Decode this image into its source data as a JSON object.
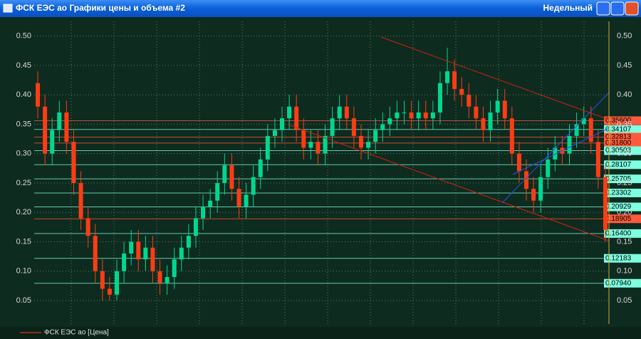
{
  "chart_data": {
    "type": "candlestick",
    "title": "ФСК ЕЭС ао Графики цены и объема #2",
    "period": "Недельный",
    "series": [
      {
        "name": "ФСК ЕЭС ао [Цена]",
        "color": "#ff3c14",
        "up_color": "#00d890",
        "open": [
          0.42,
          0.38,
          0.3,
          0.34,
          0.37,
          0.32,
          0.25,
          0.19,
          0.16,
          0.1,
          0.07,
          0.06,
          0.1,
          0.13,
          0.15,
          0.12,
          0.14,
          0.1,
          0.08,
          0.09,
          0.12,
          0.14,
          0.16,
          0.19,
          0.21,
          0.22,
          0.25,
          0.28,
          0.24,
          0.21,
          0.23,
          0.26,
          0.29,
          0.33,
          0.34,
          0.36,
          0.38,
          0.34,
          0.31,
          0.32,
          0.3,
          0.33,
          0.36,
          0.38,
          0.36,
          0.33,
          0.31,
          0.32,
          0.34,
          0.35,
          0.36,
          0.37,
          0.37,
          0.36,
          0.37,
          0.36,
          0.37,
          0.42,
          0.44,
          0.41,
          0.4,
          0.38,
          0.36,
          0.34,
          0.37,
          0.39,
          0.36,
          0.3,
          0.27,
          0.24,
          0.22,
          0.26,
          0.29,
          0.31,
          0.3,
          0.33,
          0.35,
          0.36,
          0.32,
          0.26
        ],
        "high": [
          0.44,
          0.4,
          0.36,
          0.39,
          0.39,
          0.34,
          0.27,
          0.21,
          0.18,
          0.12,
          0.09,
          0.12,
          0.15,
          0.17,
          0.17,
          0.16,
          0.16,
          0.12,
          0.11,
          0.14,
          0.16,
          0.18,
          0.21,
          0.23,
          0.24,
          0.27,
          0.3,
          0.3,
          0.26,
          0.25,
          0.28,
          0.31,
          0.35,
          0.36,
          0.38,
          0.4,
          0.4,
          0.36,
          0.34,
          0.34,
          0.35,
          0.38,
          0.4,
          0.4,
          0.38,
          0.35,
          0.34,
          0.36,
          0.37,
          0.38,
          0.39,
          0.39,
          0.39,
          0.39,
          0.39,
          0.39,
          0.44,
          0.48,
          0.46,
          0.43,
          0.42,
          0.4,
          0.38,
          0.39,
          0.41,
          0.41,
          0.38,
          0.32,
          0.29,
          0.26,
          0.28,
          0.31,
          0.33,
          0.33,
          0.35,
          0.37,
          0.38,
          0.38,
          0.34,
          0.28
        ],
        "low": [
          0.36,
          0.28,
          0.28,
          0.32,
          0.3,
          0.23,
          0.17,
          0.14,
          0.08,
          0.05,
          0.05,
          0.05,
          0.08,
          0.11,
          0.1,
          0.1,
          0.08,
          0.06,
          0.06,
          0.07,
          0.1,
          0.12,
          0.14,
          0.17,
          0.19,
          0.2,
          0.23,
          0.22,
          0.19,
          0.19,
          0.21,
          0.24,
          0.27,
          0.31,
          0.32,
          0.34,
          0.32,
          0.29,
          0.29,
          0.28,
          0.28,
          0.31,
          0.34,
          0.34,
          0.31,
          0.29,
          0.29,
          0.3,
          0.32,
          0.33,
          0.34,
          0.35,
          0.34,
          0.34,
          0.34,
          0.34,
          0.35,
          0.4,
          0.39,
          0.38,
          0.36,
          0.34,
          0.32,
          0.32,
          0.35,
          0.34,
          0.28,
          0.25,
          0.22,
          0.2,
          0.2,
          0.24,
          0.27,
          0.28,
          0.28,
          0.31,
          0.33,
          0.3,
          0.24,
          0.15
        ],
        "close": [
          0.38,
          0.3,
          0.34,
          0.37,
          0.32,
          0.25,
          0.19,
          0.16,
          0.1,
          0.07,
          0.06,
          0.1,
          0.13,
          0.15,
          0.12,
          0.14,
          0.1,
          0.08,
          0.09,
          0.12,
          0.14,
          0.16,
          0.19,
          0.21,
          0.22,
          0.25,
          0.28,
          0.24,
          0.21,
          0.23,
          0.26,
          0.29,
          0.33,
          0.34,
          0.36,
          0.38,
          0.34,
          0.31,
          0.32,
          0.3,
          0.33,
          0.36,
          0.38,
          0.36,
          0.33,
          0.31,
          0.32,
          0.34,
          0.35,
          0.36,
          0.37,
          0.37,
          0.36,
          0.37,
          0.36,
          0.37,
          0.42,
          0.44,
          0.41,
          0.4,
          0.38,
          0.36,
          0.34,
          0.37,
          0.39,
          0.36,
          0.3,
          0.27,
          0.24,
          0.22,
          0.26,
          0.29,
          0.31,
          0.3,
          0.33,
          0.35,
          0.36,
          0.32,
          0.26,
          0.17
        ]
      }
    ],
    "ylim": [
      0.01,
      0.525
    ],
    "yticks": [
      0.05,
      {
        "value": 0.1,
        "label": "0.10"
      },
      0.15,
      {
        "value": 0.2,
        "label": "0.20"
      },
      0.25,
      {
        "value": 0.3,
        "label": "0.30"
      },
      0.35,
      {
        "value": 0.4,
        "label": "0.40"
      },
      0.45,
      {
        "value": 0.5,
        "label": "0.50"
      }
    ],
    "grid": true,
    "levels": [
      {
        "value": 0.356,
        "label": "0.35600",
        "color": "#ff5a3c"
      },
      {
        "value": 0.34107,
        "label": "0.34107",
        "color": "#7fffe0"
      },
      {
        "value": 0.32813,
        "label": "0.32813",
        "color": "#ff5a3c"
      },
      {
        "value": 0.318,
        "label": "0.31800",
        "color": "#ff5a3c"
      },
      {
        "value": 0.30503,
        "label": "0.30503",
        "color": "#7fffe0"
      },
      {
        "value": 0.28107,
        "label": "0.28107",
        "color": "#7fffe0"
      },
      {
        "value": 0.25705,
        "label": "0.25705",
        "color": "#7fffe0"
      },
      {
        "value": 0.23302,
        "label": "0.23302",
        "color": "#7fffe0"
      },
      {
        "value": 0.20929,
        "label": "0.20929",
        "color": "#7fffe0"
      },
      {
        "value": 0.18905,
        "label": "0.18905",
        "color": "#ff5a3c"
      },
      {
        "value": 0.164,
        "label": "0.16400",
        "color": "#7fffe0"
      },
      {
        "value": 0.12183,
        "label": "0.12183",
        "color": "#7fffe0"
      },
      {
        "value": 0.0794,
        "label": "0.07940",
        "color": "#7fffe0"
      }
    ]
  }
}
